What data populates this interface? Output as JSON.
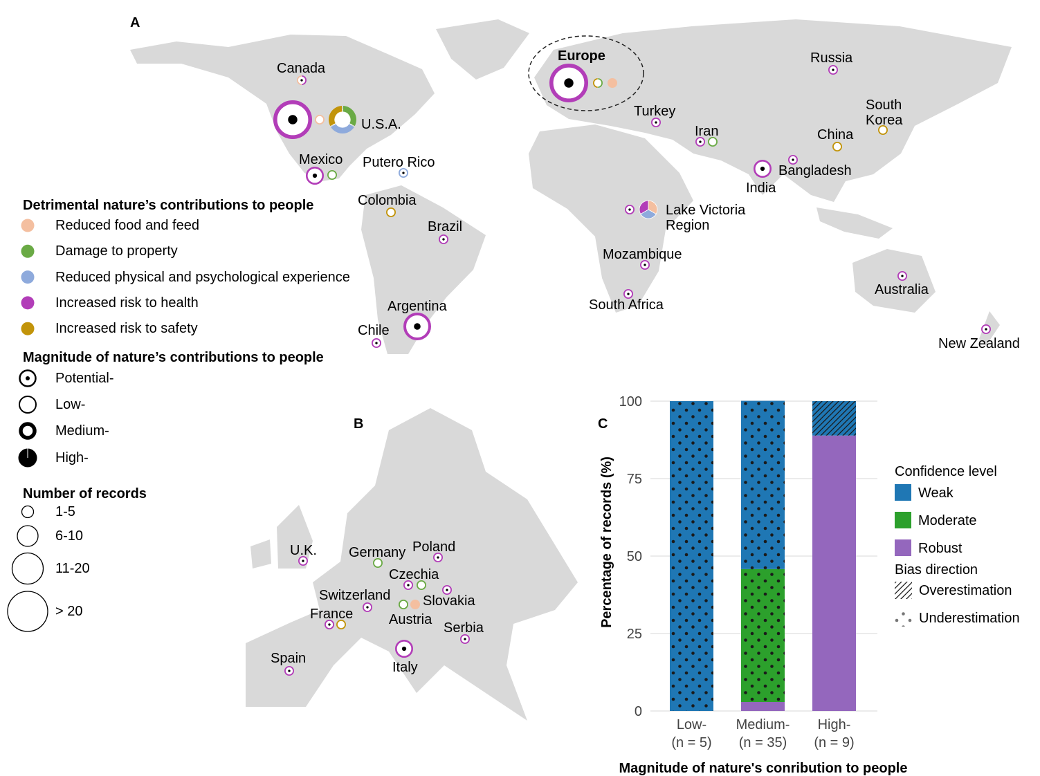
{
  "panels": {
    "a": "A",
    "b": "B",
    "c": "C"
  },
  "colors": {
    "land": "#d9d9d9",
    "reduced_food": "#f4bfa0",
    "damage_property": "#6aaa45",
    "reduced_experience": "#8eaadc",
    "health": "#b23db8",
    "safety": "#c2940a",
    "weak": "#1f77b4",
    "moderate": "#2ca02c",
    "robust": "#9467bd"
  },
  "legend_categories": {
    "title": "Detrimental nature’s contributions to people",
    "items": [
      {
        "key": "reduced_food",
        "label": "Reduced food and feed"
      },
      {
        "key": "damage_property",
        "label": "Damage to property"
      },
      {
        "key": "reduced_experience",
        "label": "Reduced physical and psychological experience"
      },
      {
        "key": "health",
        "label": "Increased risk to health"
      },
      {
        "key": "safety",
        "label": "Increased risk to safety"
      }
    ]
  },
  "legend_magnitude": {
    "title": "Magnitude of nature’s contributions to people",
    "items": [
      {
        "key": "potential",
        "label": "Potential-"
      },
      {
        "key": "low",
        "label": "Low-"
      },
      {
        "key": "medium",
        "label": "Medium-"
      },
      {
        "key": "high",
        "label": "High-"
      }
    ]
  },
  "legend_records": {
    "title": "Number of records",
    "items": [
      {
        "key": "1-5",
        "label": "1-5"
      },
      {
        "key": "6-10",
        "label": "6-10"
      },
      {
        "key": "11-20",
        "label": "11-20"
      },
      {
        "key": ">20",
        "label": "> 20"
      }
    ]
  },
  "world_labels": [
    "Canada",
    "U.S.A.",
    "Mexico",
    "Putero Rico",
    "Colombia",
    "Brazil",
    "Argentina",
    "Chile",
    "Europe",
    "Turkey",
    "Iran",
    "Russia",
    "South\nKorea",
    "China",
    "Bangladesh",
    "India",
    "Lake Victoria\nRegion",
    "Mozambique",
    "South Africa",
    "Australia",
    "New Zealand"
  ],
  "world_markers": [
    {
      "place": "Canada",
      "magnitude": "potential",
      "records": "1-5",
      "categories": [
        "health",
        "reduced_food"
      ]
    },
    {
      "place": "U.S.A.",
      "magnitude": "potential",
      "records": ">20",
      "categories": [
        "health"
      ]
    },
    {
      "place": "U.S.A.",
      "magnitude": "low",
      "records": "1-5",
      "categories": [
        "reduced_food"
      ]
    },
    {
      "place": "U.S.A.",
      "magnitude": "medium",
      "records": "11-20",
      "categories": [
        "damage_property",
        "reduced_experience",
        "safety"
      ]
    },
    {
      "place": "Mexico",
      "magnitude": "potential",
      "records": "6-10",
      "categories": [
        "health"
      ]
    },
    {
      "place": "Mexico",
      "magnitude": "low",
      "records": "1-5",
      "categories": [
        "damage_property"
      ]
    },
    {
      "place": "Putero Rico",
      "magnitude": "potential",
      "records": "1-5",
      "categories": [
        "reduced_experience"
      ]
    },
    {
      "place": "Colombia",
      "magnitude": "low",
      "records": "1-5",
      "categories": [
        "safety"
      ]
    },
    {
      "place": "Brazil",
      "magnitude": "potential",
      "records": "1-5",
      "categories": [
        "health"
      ]
    },
    {
      "place": "Argentina",
      "magnitude": "potential",
      "records": "11-20",
      "categories": [
        "health"
      ]
    },
    {
      "place": "Chile",
      "magnitude": "potential",
      "records": "1-5",
      "categories": [
        "health"
      ]
    },
    {
      "place": "Europe",
      "magnitude": "potential",
      "records": ">20",
      "categories": [
        "health"
      ]
    },
    {
      "place": "Europe",
      "magnitude": "low",
      "records": "1-5",
      "categories": [
        "damage_property",
        "safety"
      ]
    },
    {
      "place": "Europe",
      "magnitude": "high",
      "records": "1-5",
      "categories": [
        "reduced_food"
      ]
    },
    {
      "place": "Turkey",
      "magnitude": "potential",
      "records": "1-5",
      "categories": [
        "health"
      ]
    },
    {
      "place": "Iran",
      "magnitude": "potential",
      "records": "1-5",
      "categories": [
        "health"
      ]
    },
    {
      "place": "Iran",
      "magnitude": "low",
      "records": "1-5",
      "categories": [
        "damage_property"
      ]
    },
    {
      "place": "Russia",
      "magnitude": "potential",
      "records": "1-5",
      "categories": [
        "health"
      ]
    },
    {
      "place": "South Korea",
      "magnitude": "low",
      "records": "1-5",
      "categories": [
        "safety"
      ]
    },
    {
      "place": "China",
      "magnitude": "low",
      "records": "1-5",
      "categories": [
        "safety"
      ]
    },
    {
      "place": "Bangladesh",
      "magnitude": "potential",
      "records": "1-5",
      "categories": [
        "health"
      ]
    },
    {
      "place": "India",
      "magnitude": "potential",
      "records": "6-10",
      "categories": [
        "health"
      ]
    },
    {
      "place": "Lake Victoria Region",
      "magnitude": "potential",
      "records": "1-5",
      "categories": [
        "health"
      ]
    },
    {
      "place": "Lake Victoria Region",
      "magnitude": "high",
      "records": "6-10",
      "categories": [
        "reduced_food",
        "reduced_experience",
        "health"
      ]
    },
    {
      "place": "Mozambique",
      "magnitude": "potential",
      "records": "1-5",
      "categories": [
        "health"
      ]
    },
    {
      "place": "South Africa",
      "magnitude": "potential",
      "records": "1-5",
      "categories": [
        "health"
      ]
    },
    {
      "place": "Australia",
      "magnitude": "potential",
      "records": "1-5",
      "categories": [
        "health"
      ]
    },
    {
      "place": "New Zealand",
      "magnitude": "potential",
      "records": "1-5",
      "categories": [
        "health"
      ]
    }
  ],
  "europe_labels": [
    "U.K.",
    "Germany",
    "Poland",
    "Czechia",
    "Slovakia",
    "Switzerland",
    "Austria",
    "France",
    "Serbia",
    "Italy",
    "Spain"
  ],
  "europe_markers": [
    {
      "place": "U.K.",
      "magnitude": "potential",
      "records": "1-5",
      "categories": [
        "health"
      ]
    },
    {
      "place": "Germany",
      "magnitude": "low",
      "records": "1-5",
      "categories": [
        "damage_property"
      ]
    },
    {
      "place": "Poland",
      "magnitude": "potential",
      "records": "1-5",
      "categories": [
        "health"
      ]
    },
    {
      "place": "Czechia",
      "magnitude": "potential",
      "records": "1-5",
      "categories": [
        "health"
      ]
    },
    {
      "place": "Czechia",
      "magnitude": "low",
      "records": "1-5",
      "categories": [
        "damage_property"
      ]
    },
    {
      "place": "Slovakia",
      "magnitude": "potential",
      "records": "1-5",
      "categories": [
        "health"
      ]
    },
    {
      "place": "Switzerland",
      "magnitude": "potential",
      "records": "1-5",
      "categories": [
        "health"
      ]
    },
    {
      "place": "Austria",
      "magnitude": "low",
      "records": "1-5",
      "categories": [
        "damage_property"
      ]
    },
    {
      "place": "Austria",
      "magnitude": "high",
      "records": "1-5",
      "categories": [
        "reduced_food"
      ]
    },
    {
      "place": "France",
      "magnitude": "potential",
      "records": "1-5",
      "categories": [
        "health"
      ]
    },
    {
      "place": "France",
      "magnitude": "low",
      "records": "1-5",
      "categories": [
        "safety"
      ]
    },
    {
      "place": "Serbia",
      "magnitude": "potential",
      "records": "1-5",
      "categories": [
        "health"
      ]
    },
    {
      "place": "Italy",
      "magnitude": "potential",
      "records": "6-10",
      "categories": [
        "health"
      ]
    },
    {
      "place": "Spain",
      "magnitude": "potential",
      "records": "1-5",
      "categories": [
        "health"
      ]
    }
  ],
  "chart_data": {
    "type": "bar",
    "stacked": true,
    "title": "",
    "xlabel": "Magnitude of nature's conribution to people",
    "ylabel": "Percentage of records (%)",
    "ylim": [
      0,
      100
    ],
    "yticks": [
      0,
      25,
      50,
      75,
      100
    ],
    "grid": true,
    "categories": [
      "Low-\n(n = 5)",
      "Medium-\n(n = 35)",
      "High-\n(n = 9)"
    ],
    "series": [
      {
        "name": "Robust",
        "color_key": "robust",
        "values": [
          0,
          2.9,
          88.9
        ],
        "bias": [
          "none",
          "none",
          "none"
        ]
      },
      {
        "name": "Moderate",
        "color_key": "moderate",
        "values": [
          0,
          42.9,
          0
        ],
        "bias": [
          "underestimation",
          "underestimation",
          "none"
        ]
      },
      {
        "name": "Weak",
        "color_key": "weak",
        "values": [
          100,
          54.3,
          11.1
        ],
        "bias": [
          "underestimation",
          "underestimation",
          "overestimation"
        ]
      }
    ],
    "legend": {
      "placement": "right",
      "confidence_title": "Confidence level",
      "confidence_items": [
        {
          "label": "Weak",
          "color_key": "weak"
        },
        {
          "label": "Moderate",
          "color_key": "moderate"
        },
        {
          "label": "Robust",
          "color_key": "robust"
        }
      ],
      "bias_title": "Bias direction",
      "bias_items": [
        {
          "label": "Overestimation",
          "pattern": "hatch"
        },
        {
          "label": "Underestimation",
          "pattern": "dots"
        }
      ]
    }
  }
}
